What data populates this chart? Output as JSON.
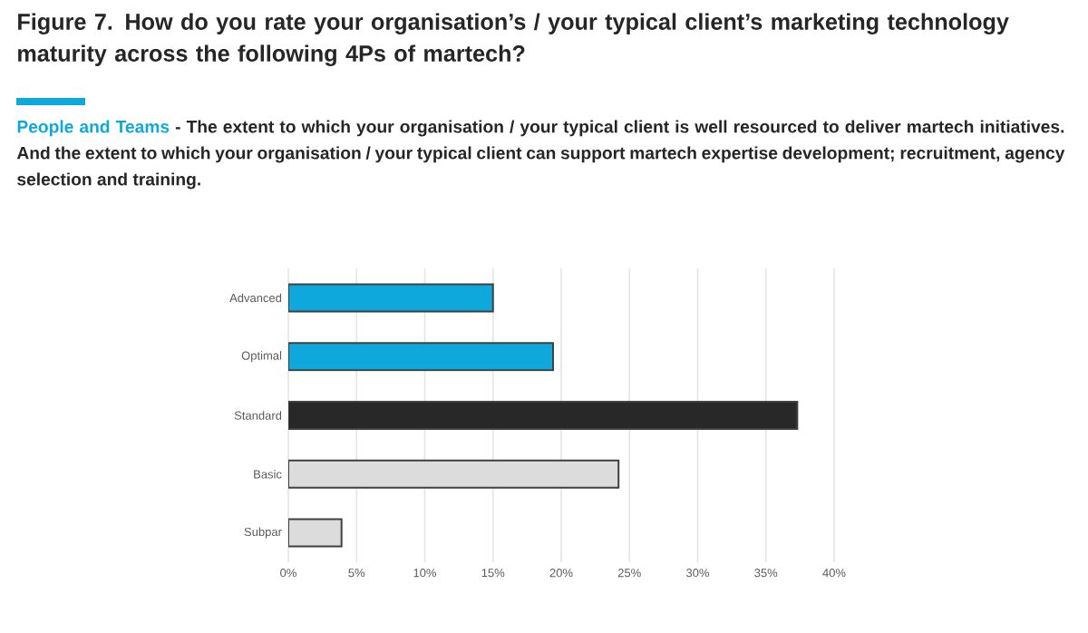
{
  "chart_data": {
    "type": "bar",
    "orientation": "horizontal",
    "title": "Figure 7. How do you rate your organisation’s / your typical client’s marketing technology maturity across the following 4Ps of martech?",
    "subtitle": "People and Teams",
    "annotations": [
      "- The extent to which your organisation / your typical client is well resourced to deliver martech initiatives. And the extent to which your organisation / your typical client can support martech expertise development; recruitment, agency selection and training."
    ],
    "categories": [
      "Advanced",
      "Optimal",
      "Standard",
      "Basic",
      "Subpar"
    ],
    "values": [
      15.0,
      19.4,
      37.3,
      24.2,
      3.9
    ],
    "colors": [
      "#0ea8dc",
      "#0ea8dc",
      "#282828",
      "#dcdcdc",
      "#dcdcdc"
    ],
    "xlim": [
      0,
      40
    ],
    "xticks": [
      {
        "value": 0,
        "label": "0%"
      },
      {
        "value": 5,
        "label": "5%"
      },
      {
        "value": 10,
        "label": "10%"
      },
      {
        "value": 15,
        "label": "15%"
      },
      {
        "value": 20,
        "label": "20%"
      },
      {
        "value": 25,
        "label": "25%"
      },
      {
        "value": 30,
        "label": "30%"
      },
      {
        "value": 35,
        "label": "35%"
      },
      {
        "value": 40,
        "label": "40%"
      }
    ],
    "grid": "x"
  }
}
